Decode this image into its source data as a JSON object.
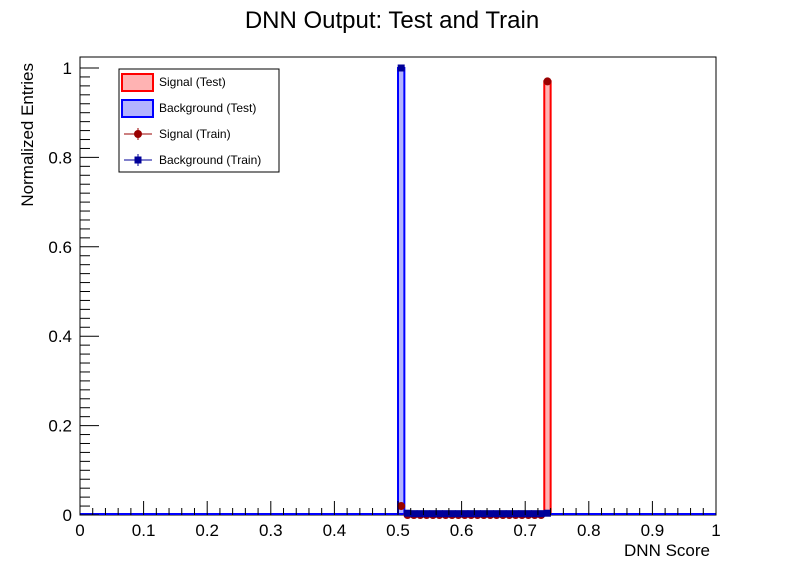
{
  "chart_data": {
    "type": "histogram",
    "title": "DNN Output: Test and Train",
    "xlabel": "DNN Score",
    "ylabel": "Normalized Entries",
    "xlim": [
      0,
      1
    ],
    "ylim": [
      0,
      1.02
    ],
    "grid": false,
    "legend_position": "top-left",
    "x_ticks": [
      {
        "value": 0,
        "label": "0"
      },
      {
        "value": 0.1,
        "label": "0.1"
      },
      {
        "value": 0.2,
        "label": "0.2"
      },
      {
        "value": 0.3,
        "label": "0.3"
      },
      {
        "value": 0.4,
        "label": "0.4"
      },
      {
        "value": 0.5,
        "label": "0.5"
      },
      {
        "value": 0.6,
        "label": "0.6"
      },
      {
        "value": 0.7,
        "label": "0.7"
      },
      {
        "value": 0.8,
        "label": "0.8"
      },
      {
        "value": 0.9,
        "label": "0.9"
      },
      {
        "value": 1,
        "label": "1"
      }
    ],
    "y_ticks": [
      {
        "value": 0,
        "label": "0"
      },
      {
        "value": 0.2,
        "label": "0.2"
      },
      {
        "value": 0.4,
        "label": "0.4"
      },
      {
        "value": 0.6,
        "label": "0.6"
      },
      {
        "value": 0.8,
        "label": "0.8"
      },
      {
        "value": 1,
        "label": "1"
      }
    ],
    "bins": {
      "min": 0,
      "max": 1,
      "count": 100
    },
    "series": [
      {
        "name": "Signal (Test)",
        "kind": "filled-histogram",
        "line_color": "#ff0000",
        "fill_color": "#ffb3b3",
        "bins": [
          {
            "x0": 0.73,
            "x1": 0.74,
            "value": 0.97
          }
        ]
      },
      {
        "name": "Background (Test)",
        "kind": "filled-histogram",
        "line_color": "#0000ff",
        "fill_color": "#b3b3ff",
        "bins": [
          {
            "x0": 0.5,
            "x1": 0.51,
            "value": 1.0
          }
        ]
      },
      {
        "name": "Signal (Train)",
        "kind": "markers",
        "marker": "circle",
        "color": "#990000",
        "points": [
          {
            "x": 0.505,
            "y": 0.02
          },
          {
            "x": 0.515,
            "y": 0.0
          },
          {
            "x": 0.525,
            "y": 0.0
          },
          {
            "x": 0.535,
            "y": 0.0
          },
          {
            "x": 0.545,
            "y": 0.0
          },
          {
            "x": 0.555,
            "y": 0.0
          },
          {
            "x": 0.565,
            "y": 0.0
          },
          {
            "x": 0.575,
            "y": 0.0
          },
          {
            "x": 0.585,
            "y": 0.0
          },
          {
            "x": 0.595,
            "y": 0.0
          },
          {
            "x": 0.605,
            "y": 0.0
          },
          {
            "x": 0.615,
            "y": 0.0
          },
          {
            "x": 0.625,
            "y": 0.0
          },
          {
            "x": 0.635,
            "y": 0.0
          },
          {
            "x": 0.645,
            "y": 0.0
          },
          {
            "x": 0.655,
            "y": 0.0
          },
          {
            "x": 0.665,
            "y": 0.0
          },
          {
            "x": 0.675,
            "y": 0.0
          },
          {
            "x": 0.685,
            "y": 0.0
          },
          {
            "x": 0.695,
            "y": 0.0
          },
          {
            "x": 0.705,
            "y": 0.0
          },
          {
            "x": 0.715,
            "y": 0.0
          },
          {
            "x": 0.725,
            "y": 0.0
          },
          {
            "x": 0.735,
            "y": 0.97
          }
        ]
      },
      {
        "name": "Background (Train)",
        "kind": "markers",
        "marker": "square",
        "color": "#000099",
        "points": [
          {
            "x": 0.505,
            "y": 1.0
          },
          {
            "x": 0.515,
            "y": 0.004
          },
          {
            "x": 0.525,
            "y": 0.003
          },
          {
            "x": 0.535,
            "y": 0.003
          },
          {
            "x": 0.545,
            "y": 0.003
          },
          {
            "x": 0.555,
            "y": 0.003
          },
          {
            "x": 0.565,
            "y": 0.003
          },
          {
            "x": 0.575,
            "y": 0.003
          },
          {
            "x": 0.585,
            "y": 0.003
          },
          {
            "x": 0.595,
            "y": 0.003
          },
          {
            "x": 0.605,
            "y": 0.003
          },
          {
            "x": 0.615,
            "y": 0.003
          },
          {
            "x": 0.625,
            "y": 0.003
          },
          {
            "x": 0.635,
            "y": 0.003
          },
          {
            "x": 0.645,
            "y": 0.003
          },
          {
            "x": 0.655,
            "y": 0.003
          },
          {
            "x": 0.665,
            "y": 0.003
          },
          {
            "x": 0.675,
            "y": 0.003
          },
          {
            "x": 0.685,
            "y": 0.003
          },
          {
            "x": 0.695,
            "y": 0.003
          },
          {
            "x": 0.705,
            "y": 0.003
          },
          {
            "x": 0.715,
            "y": 0.003
          },
          {
            "x": 0.725,
            "y": 0.003
          },
          {
            "x": 0.735,
            "y": 0.004
          }
        ]
      }
    ]
  }
}
